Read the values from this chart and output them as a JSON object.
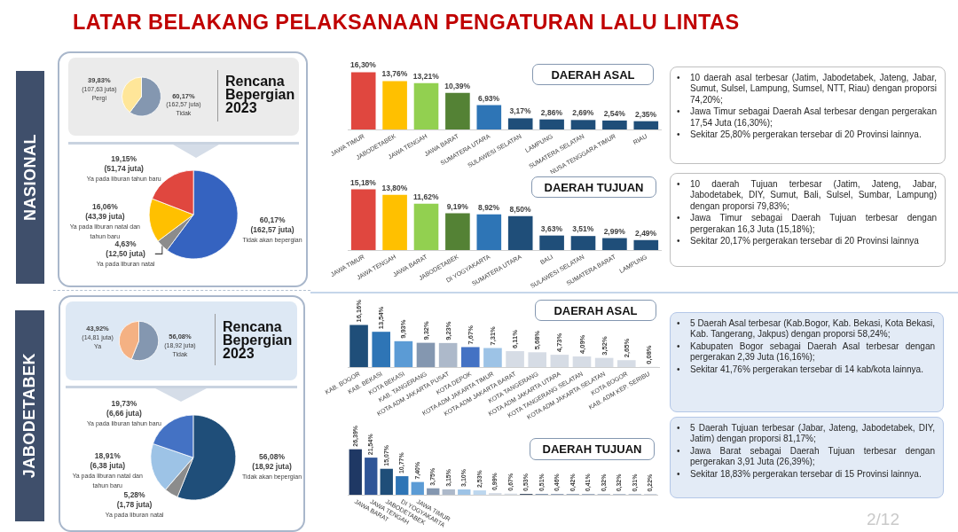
{
  "chart_data": [
    {
      "type": "other",
      "title": "LATAR BELAKANG PELAKSANAAN PENGATURAN LALU LINTAS",
      "annotations": [
        "2/12"
      ]
    },
    {
      "type": "other",
      "title": "NASIONAL"
    },
    {
      "type": "pie",
      "title": "Rencana Bepergian 2023",
      "categories": [
        "Tidak",
        "Pergi"
      ],
      "values": [
        60.17,
        39.83
      ],
      "value_labels": [
        "60,17%\n(162,57 juta)",
        "39,83%\n(107,63 juta)"
      ],
      "colors": [
        "#8497b0",
        "#ffe699"
      ]
    },
    {
      "type": "pie",
      "categories": [
        "Tidak akan bepergian",
        "Ya pada liburan natal",
        "Ya pada liburan natal dan tahun baru",
        "Ya pada liburan tahun baru"
      ],
      "values": [
        60.17,
        4.63,
        16.06,
        19.15
      ],
      "value_labels": [
        "60,17%\n(162,57 juta)",
        "4,63%\n(12,50 juta)",
        "16,06%\n(43,39 juta)",
        "19,15%\n(51,74 juta)"
      ],
      "colors": [
        "#3563c0",
        "#8c8c8c",
        "#ffc000",
        "#e0473f"
      ]
    },
    {
      "type": "bar",
      "title": "DAERAH ASAL",
      "categories": [
        "JAWA TIMUR",
        "JABODETABEK",
        "JAWA TENGAH",
        "JAWA BARAT",
        "SUMATERA UTARA",
        "SULAWESI SELATAN",
        "LAMPUNG",
        "SUMATERA SELATAN",
        "NUSA TENGGARA TIMUR",
        "RIAU"
      ],
      "values": [
        16.3,
        13.76,
        13.21,
        10.39,
        6.93,
        3.17,
        2.86,
        2.69,
        2.54,
        2.35
      ],
      "value_labels": [
        "16,30%",
        "13,76%",
        "13,21%",
        "10,39%",
        "6,93%",
        "3,17%",
        "2,86%",
        "2,69%",
        "2,54%",
        "2,35%"
      ],
      "colors": [
        "#e0473f",
        "#ffc000",
        "#92d050",
        "#548235",
        "#2e75b6",
        "#1f4e79",
        "#1f4e79",
        "#1f4e79",
        "#1f4e79",
        "#1f4e79"
      ]
    },
    {
      "type": "other",
      "annotations": [
        "• 10 daerah asal terbesar (Jatim, Jabodetabek, Jateng, Jabar, Sumut, Sulsel, Lampung, Sumsel, NTT, Riau) dengan proporsi 74,20%;",
        "• Jawa Timur sebagai Daerah Asal terbesar dengan pergerakan 17,54 Juta (16,30%);",
        "• Sekitar 25,80% pergerakan tersebar di 20 Provinsi lainnya."
      ]
    },
    {
      "type": "bar",
      "title": "DAERAH TUJUAN",
      "categories": [
        "JAWA TIMUR",
        "JAWA TENGAH",
        "JAWA BARAT",
        "JABODETABEK",
        "DI YOGYAKARTA",
        "SUMATERA UTARA",
        "BALI",
        "SULAWESI SELATAN",
        "SUMATERA BARAT",
        "LAMPUNG"
      ],
      "values": [
        15.18,
        13.8,
        11.62,
        9.19,
        8.92,
        8.5,
        3.63,
        3.51,
        2.99,
        2.49
      ],
      "value_labels": [
        "15,18%",
        "13,80%",
        "11,62%",
        "9,19%",
        "8,92%",
        "8,50%",
        "3,63%",
        "3,51%",
        "2,99%",
        "2,49%"
      ],
      "colors": [
        "#e0473f",
        "#ffc000",
        "#92d050",
        "#548235",
        "#2e75b6",
        "#1f4e79",
        "#1f4e79",
        "#1f4e79",
        "#1f4e79",
        "#1f4e79"
      ]
    },
    {
      "type": "other",
      "annotations": [
        "• 10 daerah Tujuan terbesar (Jatim, Jateng, Jabar, Jabodetabek, DIY, Sumut, Bali, Sulsel, Sumbar, Lampung) dengan proporsi 79,83%;",
        "• Jawa Timur sebagai Daerah Tujuan terbesar dengan pergerakan 16,3 Juta (15,18%);",
        "• Sekitar 20,17% pergerakan tersebar di 20 Provinsi lainnya"
      ]
    },
    {
      "type": "other",
      "title": "JABODETABEK"
    },
    {
      "type": "pie",
      "title": "Rencana Bepergian 2023",
      "categories": [
        "Tidak",
        "Ya"
      ],
      "values": [
        56.08,
        43.92
      ],
      "value_labels": [
        "56,08%\n(18,92 juta)",
        "43,92%\n(14,81 juta)"
      ],
      "colors": [
        "#8497b0",
        "#f4b183"
      ]
    },
    {
      "type": "pie",
      "categories": [
        "Tidak akan bepergian",
        "Ya pada liburan natal",
        "Ya pada liburan natal dan tahun baru",
        "Ya pada liburan tahun baru"
      ],
      "values": [
        56.08,
        5.28,
        18.91,
        19.73
      ],
      "value_labels": [
        "56,08%\n(18,92 juta)",
        "5,28%\n(1,78 juta)",
        "18,91%\n(6,38 juta)",
        "19,73%\n(6,66 juta)"
      ],
      "colors": [
        "#1f4e79",
        "#8c8c8c",
        "#9dc3e6",
        "#4472c4"
      ]
    },
    {
      "type": "bar",
      "title": "DAERAH ASAL",
      "categories": [
        "KAB. BOGOR",
        "KAB. BEKASI",
        "KOTA BEKASI",
        "KAB. TANGERANG",
        "KOTA ADM JAKARTA PUSAT",
        "KOTA DEPOK",
        "KOTA ADM JAKARTA TIMUR",
        "KOTA ADM JAKARTA BARAT",
        "KOTA TANGERANG",
        "KOTA ADM JAKARTA UTARA",
        "KOTA TANGERANG SELATAN",
        "KOTA ADM JAKARTA SELATAN",
        "KOTA BOGOR",
        "KAB. ADM KEP. SERIBU"
      ],
      "values": [
        16.16,
        13.54,
        9.93,
        9.32,
        9.23,
        7.67,
        7.31,
        6.11,
        5.68,
        4.73,
        4.09,
        3.52,
        2.65,
        0.08
      ],
      "value_labels": [
        "16,16%",
        "13,54%",
        "9,93%",
        "9,32%",
        "9,23%",
        "7,67%",
        "7,31%",
        "6,11%",
        "5,68%",
        "4,73%",
        "4,09%",
        "3,52%",
        "2,65%",
        "0,08%"
      ],
      "colors": [
        "#1f4e79",
        "#2e75b6",
        "#5b9bd5",
        "#8497b0",
        "#adb9ca",
        "#4472c4",
        "#9dc3e6",
        "#d6dce5",
        "#d6dce5",
        "#d6dce5",
        "#d6dce5",
        "#d6dce5",
        "#d6dce5",
        "#d6dce5"
      ]
    },
    {
      "type": "other",
      "annotations": [
        "• 5 Daerah Asal terbesar (Kab.Bogor, Kab. Bekasi, Kota Bekasi, Kab. Tangerang, Jakpus) dengan proporsi 58,24%;",
        "• Kabupaten Bogor sebagai Daerah Asal terbesar dengan pergerakan 2,39 Juta (16,16%);",
        "• Sekitar 41,76% pergerakan tersebar di 14 kab/kota lainnya."
      ]
    },
    {
      "type": "bar",
      "title": "DAERAH TUJUAN",
      "categories": [
        "JAWA BARAT",
        "JAWA TENGAH",
        "JABODETABEK",
        "DI YOGYAKARTA",
        "JAWA TIMUR",
        null,
        null,
        null,
        null,
        null,
        null,
        null,
        null,
        null,
        null,
        null,
        null,
        null,
        null,
        null
      ],
      "values": [
        26.39,
        21.54,
        15.07,
        10.77,
        7.4,
        3.75,
        3.15,
        3.1,
        2.53,
        0.99,
        0.67,
        0.53,
        0.51,
        0.46,
        0.42,
        0.41,
        0.32,
        0.32,
        0.31,
        0.22
      ],
      "value_labels": [
        "26,39%",
        "21,54%",
        "15,07%",
        "10,77%",
        "7,40%",
        "3,75%",
        "3,15%",
        "3,10%",
        "2,53%",
        "0,99%",
        "0,67%",
        "0,53%",
        "0,51%",
        "0,46%",
        "0,42%",
        "0,41%",
        "0,32%",
        "0,32%",
        "0,31%",
        "0,22%"
      ],
      "colors": [
        "#1f3864",
        "#2f5597",
        "#1f4e79",
        "#2e75b6",
        "#5b9bd5",
        "#8497b0",
        "#adb9ca",
        "#9dc3e6",
        "#bdd7ee",
        "#d6dce5",
        "#d6dce5",
        "#44546a",
        "#8497b0",
        "#8497b0",
        "#8497b0",
        "#8497b0",
        "#8497b0",
        "#8497b0",
        "#8497b0",
        "#8497b0"
      ]
    },
    {
      "type": "other",
      "annotations": [
        "• 5 Daerah Tujuan terbesar (Jabar, Jateng, Jabodetabek, DIY, Jatim) dengan proporsi 81,17%;",
        "• Jawa Barat sebagai Daerah Tujuan terbesar dengan pergerakan 3,91 Juta (26,39%);",
        "• Sekitar 18,83% pergerakan tersebar di 15 Provinsi lainnya."
      ]
    }
  ]
}
